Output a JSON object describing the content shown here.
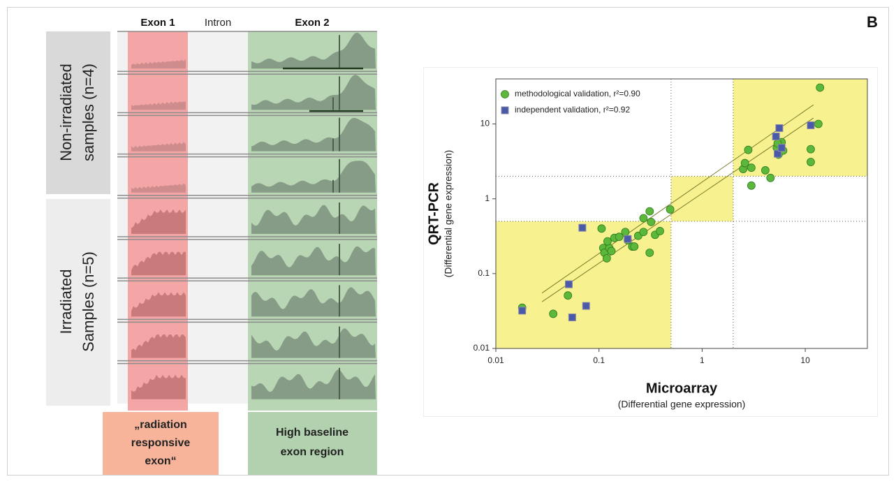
{
  "left_panel": {
    "headers": [
      "Exon 1",
      "Intron",
      "Exon 2"
    ],
    "non_irradiated_label": [
      "Non-irradiated",
      "samples (n=4)"
    ],
    "irradiated_label": [
      "Irradiated",
      "Samples (n=5)"
    ],
    "exon1_box": [
      "„radiation",
      "responsive",
      "exon“"
    ],
    "exon2_box": [
      "High baseline",
      "exon region"
    ]
  },
  "chart_data": {
    "type": "scatter",
    "panel_label": "B",
    "x_label": "Microarray",
    "x_sublabel": "(Differential gene expression)",
    "y_label": "QRT-PCR",
    "y_sublabel": "(Differential gene expression)",
    "log_scale": true,
    "xlim": [
      0.01,
      40
    ],
    "ylim": [
      0.01,
      40
    ],
    "xticks": [
      0.01,
      0.1,
      1,
      10
    ],
    "yticks": [
      0.01,
      0.1,
      1,
      10
    ],
    "thresholds": [
      0.5,
      2
    ],
    "region_color": "#f7f28f",
    "legend": "upper left",
    "series": [
      {
        "name": "methodological validation, r²=0.90",
        "color": "#5cb83a",
        "marker": "circle",
        "x": [
          0.018,
          0.036,
          0.05,
          0.106,
          0.11,
          0.113,
          0.119,
          0.126,
          0.132,
          0.121,
          0.141,
          0.157,
          0.18,
          0.19,
          0.21,
          0.22,
          0.24,
          0.27,
          0.31,
          0.32,
          0.31,
          0.35,
          0.39,
          0.49,
          0.27,
          2.5,
          2.6,
          2.8,
          3.0,
          3.0,
          4.1,
          4.6,
          5.3,
          5.5,
          5.9,
          5.4,
          11.3,
          11.3,
          13.4,
          13.9,
          6.1
        ],
        "values": [
          0.035,
          0.029,
          0.051,
          0.4,
          0.22,
          0.19,
          0.16,
          0.22,
          0.2,
          0.27,
          0.3,
          0.31,
          0.36,
          0.28,
          0.23,
          0.23,
          0.32,
          0.36,
          0.68,
          0.49,
          0.19,
          0.33,
          0.37,
          0.72,
          0.55,
          2.5,
          3.0,
          4.5,
          2.6,
          1.5,
          2.4,
          1.9,
          4.8,
          3.9,
          5.7,
          5.5,
          3.1,
          4.6,
          10,
          30.6,
          4.4
        ]
      },
      {
        "name": "independent validation, r²=0.92",
        "color": "#4a5aa8",
        "marker": "square",
        "x": [
          0.018,
          0.051,
          0.055,
          0.069,
          0.075,
          0.19,
          5.2,
          5.6,
          5.4,
          5.9,
          11.3
        ],
        "values": [
          0.032,
          0.072,
          0.026,
          0.41,
          0.037,
          0.29,
          6.8,
          8.8,
          4.0,
          4.8,
          9.6
        ]
      }
    ],
    "fit_lines": [
      {
        "color": "#7a7a2a",
        "x": [
          0.028,
          12
        ],
        "values": [
          0.055,
          18
        ]
      },
      {
        "color": "#7a7a2a",
        "x": [
          0.028,
          12
        ],
        "values": [
          0.042,
          12
        ]
      }
    ]
  }
}
